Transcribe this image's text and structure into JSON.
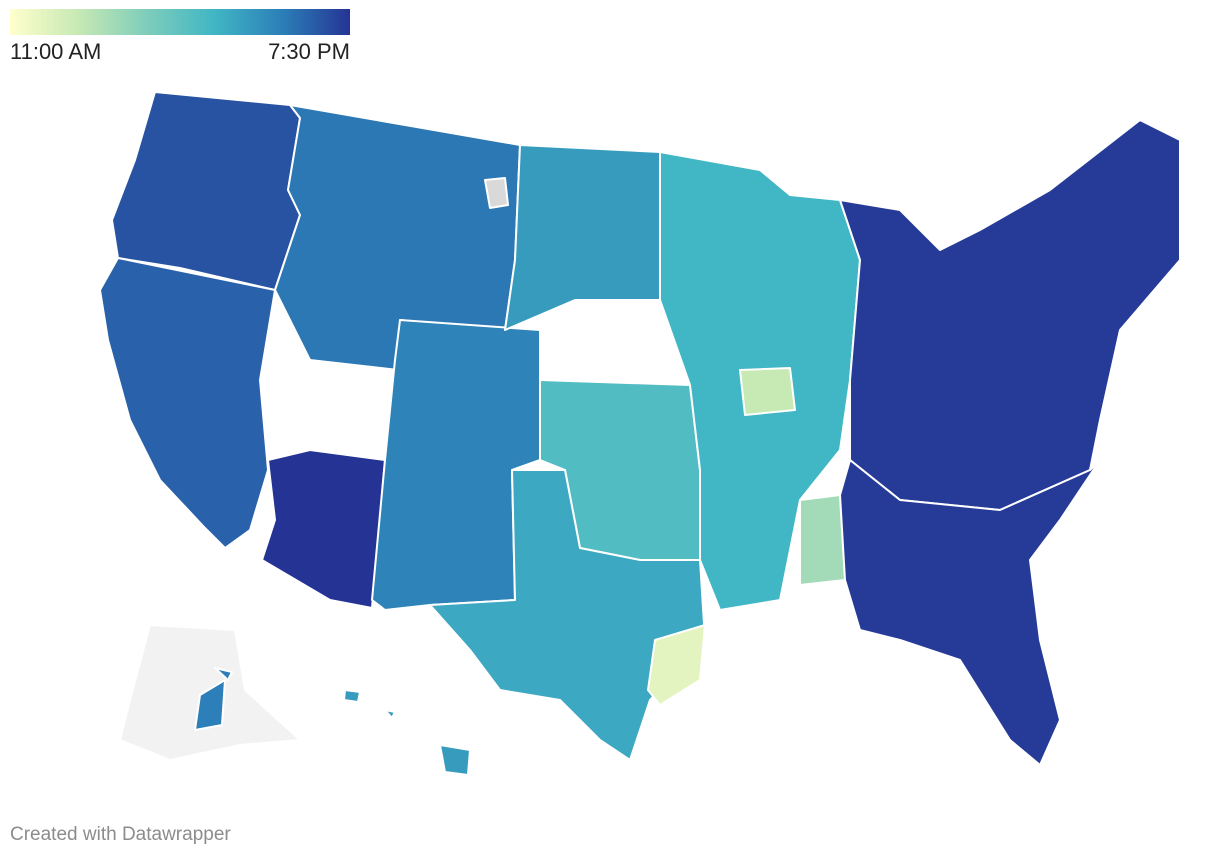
{
  "legend": {
    "min_label": "11:00 AM",
    "max_label": "7:30 PM",
    "gradient": [
      "#ffffcc",
      "#c7e9b4",
      "#7fcdbb",
      "#41b6c4",
      "#2c7fb8",
      "#253494"
    ]
  },
  "colors": {
    "no_data": "#d9d9d9",
    "not_shown": "#f2f2f2",
    "border": "#ffffff"
  },
  "map_layers": [
    {
      "region": "Pacific Northwest",
      "level": 0.92
    },
    {
      "region": "California and Nevada",
      "level": 0.88
    },
    {
      "region": "Arizona",
      "level": 1.0
    },
    {
      "region": "Mountain West",
      "level": 0.82
    },
    {
      "region": "New Mexico and Colorado",
      "level": 0.78
    },
    {
      "region": "Dakotas",
      "level": 0.7
    },
    {
      "region": "Kansas and Oklahoma",
      "level": 0.55
    },
    {
      "region": "Texas",
      "level": 0.65
    },
    {
      "region": "Upper Midwest",
      "level": 0.6
    },
    {
      "region": "Central Illinois",
      "level": 0.2
    },
    {
      "region": "Mississippi and Alabama",
      "level": 0.3
    },
    {
      "region": "Southeast Texas",
      "level": 0.1
    },
    {
      "region": "Great Lakes and East",
      "level": 0.98
    },
    {
      "region": "Southeast",
      "level": 0.98
    },
    {
      "region": "Hawaii",
      "level": 0.7
    },
    {
      "region": "Alaska mainland",
      "status": "not_shown"
    },
    {
      "region": "Alaska islands",
      "level": 0.8
    },
    {
      "region": "Montana county",
      "status": "no_data"
    }
  ],
  "footer": {
    "credit": "Created with Datawrapper"
  }
}
